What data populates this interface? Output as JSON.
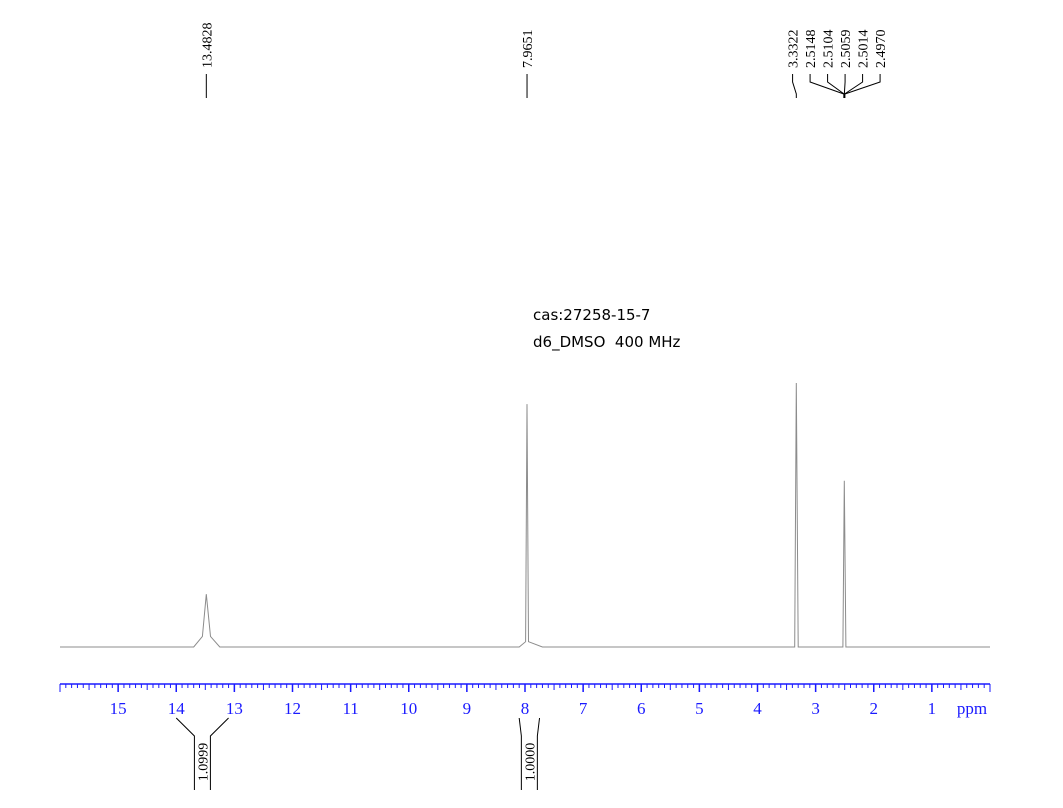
{
  "chart_data": {
    "type": "nmr",
    "annotations": [
      "cas:27258-15-7",
      "d6_DMSO  400 MHz"
    ],
    "x_label": "ppm",
    "xlim": [
      16,
      0
    ],
    "xticks": [
      15,
      14,
      13,
      12,
      11,
      10,
      9,
      8,
      7,
      6,
      5,
      4,
      3,
      2,
      1
    ],
    "xminor": 0.1,
    "ylim": [
      0,
      100
    ],
    "series": [
      {
        "color": "#8c8c8c",
        "x": [
          16,
          13.7,
          13.55,
          13.4828,
          13.41,
          13.25,
          8.1,
          7.99,
          7.9651,
          7.94,
          7.7,
          3.36,
          3.3322,
          3.3,
          2.53,
          2.5059,
          2.48,
          0
        ],
        "values": [
          0,
          0,
          4,
          20,
          4,
          0,
          0,
          2,
          92,
          2,
          0,
          0,
          100,
          0,
          0,
          63,
          0,
          0
        ]
      }
    ],
    "peak_labels": [
      {
        "value": 13.4828,
        "label": "13.4828"
      },
      {
        "value": 7.9651,
        "label": "7.9651"
      },
      {
        "value": 3.3322,
        "label": "3.3322"
      },
      {
        "value": 2.5148,
        "label": "2.5148"
      },
      {
        "value": 2.5104,
        "label": "2.5104"
      },
      {
        "value": 2.5059,
        "label": "2.5059"
      },
      {
        "value": 2.5014,
        "label": "2.5014"
      },
      {
        "value": 2.497,
        "label": "2.4970"
      }
    ],
    "integrals": [
      {
        "range": [
          14,
          13.1
        ],
        "value": 1.0999,
        "label": "1.0999"
      },
      {
        "range": [
          8.1,
          7.75
        ],
        "value": 1,
        "label": "1.0000"
      }
    ]
  }
}
